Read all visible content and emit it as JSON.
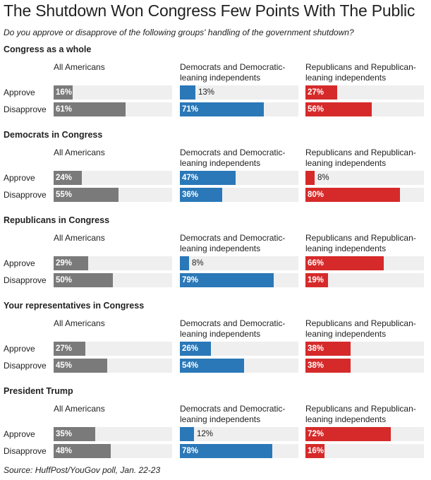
{
  "title": "The Shutdown Won Congress Few Points With The Public",
  "subtitle": "Do you approve or disapprove of the following groups' handling of the government shutdown?",
  "source": "Source: HuffPost/YouGov poll, Jan. 22-23",
  "colors": {
    "all": "#7a7a7a",
    "dem": "#2a78b8",
    "rep": "#d62a2a",
    "track": "#efefef"
  },
  "chart_data": {
    "type": "bar",
    "columns": [
      {
        "key": "all",
        "label": "All Americans"
      },
      {
        "key": "dem",
        "label": "Democrats and Democratic-leaning independents"
      },
      {
        "key": "rep",
        "label": "Republicans and Republican-leaning independents"
      }
    ],
    "rows": [
      "Approve",
      "Disapprove"
    ],
    "xlim": [
      0,
      100
    ],
    "groups": [
      {
        "name": "Congress as a whole",
        "values": {
          "all": [
            16,
            61
          ],
          "dem": [
            13,
            71
          ],
          "rep": [
            27,
            56
          ]
        }
      },
      {
        "name": "Democrats in Congress",
        "values": {
          "all": [
            24,
            55
          ],
          "dem": [
            47,
            36
          ],
          "rep": [
            8,
            80
          ]
        }
      },
      {
        "name": "Republicans in Congress",
        "values": {
          "all": [
            29,
            50
          ],
          "dem": [
            8,
            79
          ],
          "rep": [
            66,
            19
          ]
        }
      },
      {
        "name": "Your representatives in Congress",
        "values": {
          "all": [
            27,
            45
          ],
          "dem": [
            26,
            54
          ],
          "rep": [
            38,
            38
          ]
        }
      },
      {
        "name": "President Trump",
        "values": {
          "all": [
            35,
            48
          ],
          "dem": [
            12,
            78
          ],
          "rep": [
            72,
            16
          ]
        }
      }
    ]
  }
}
